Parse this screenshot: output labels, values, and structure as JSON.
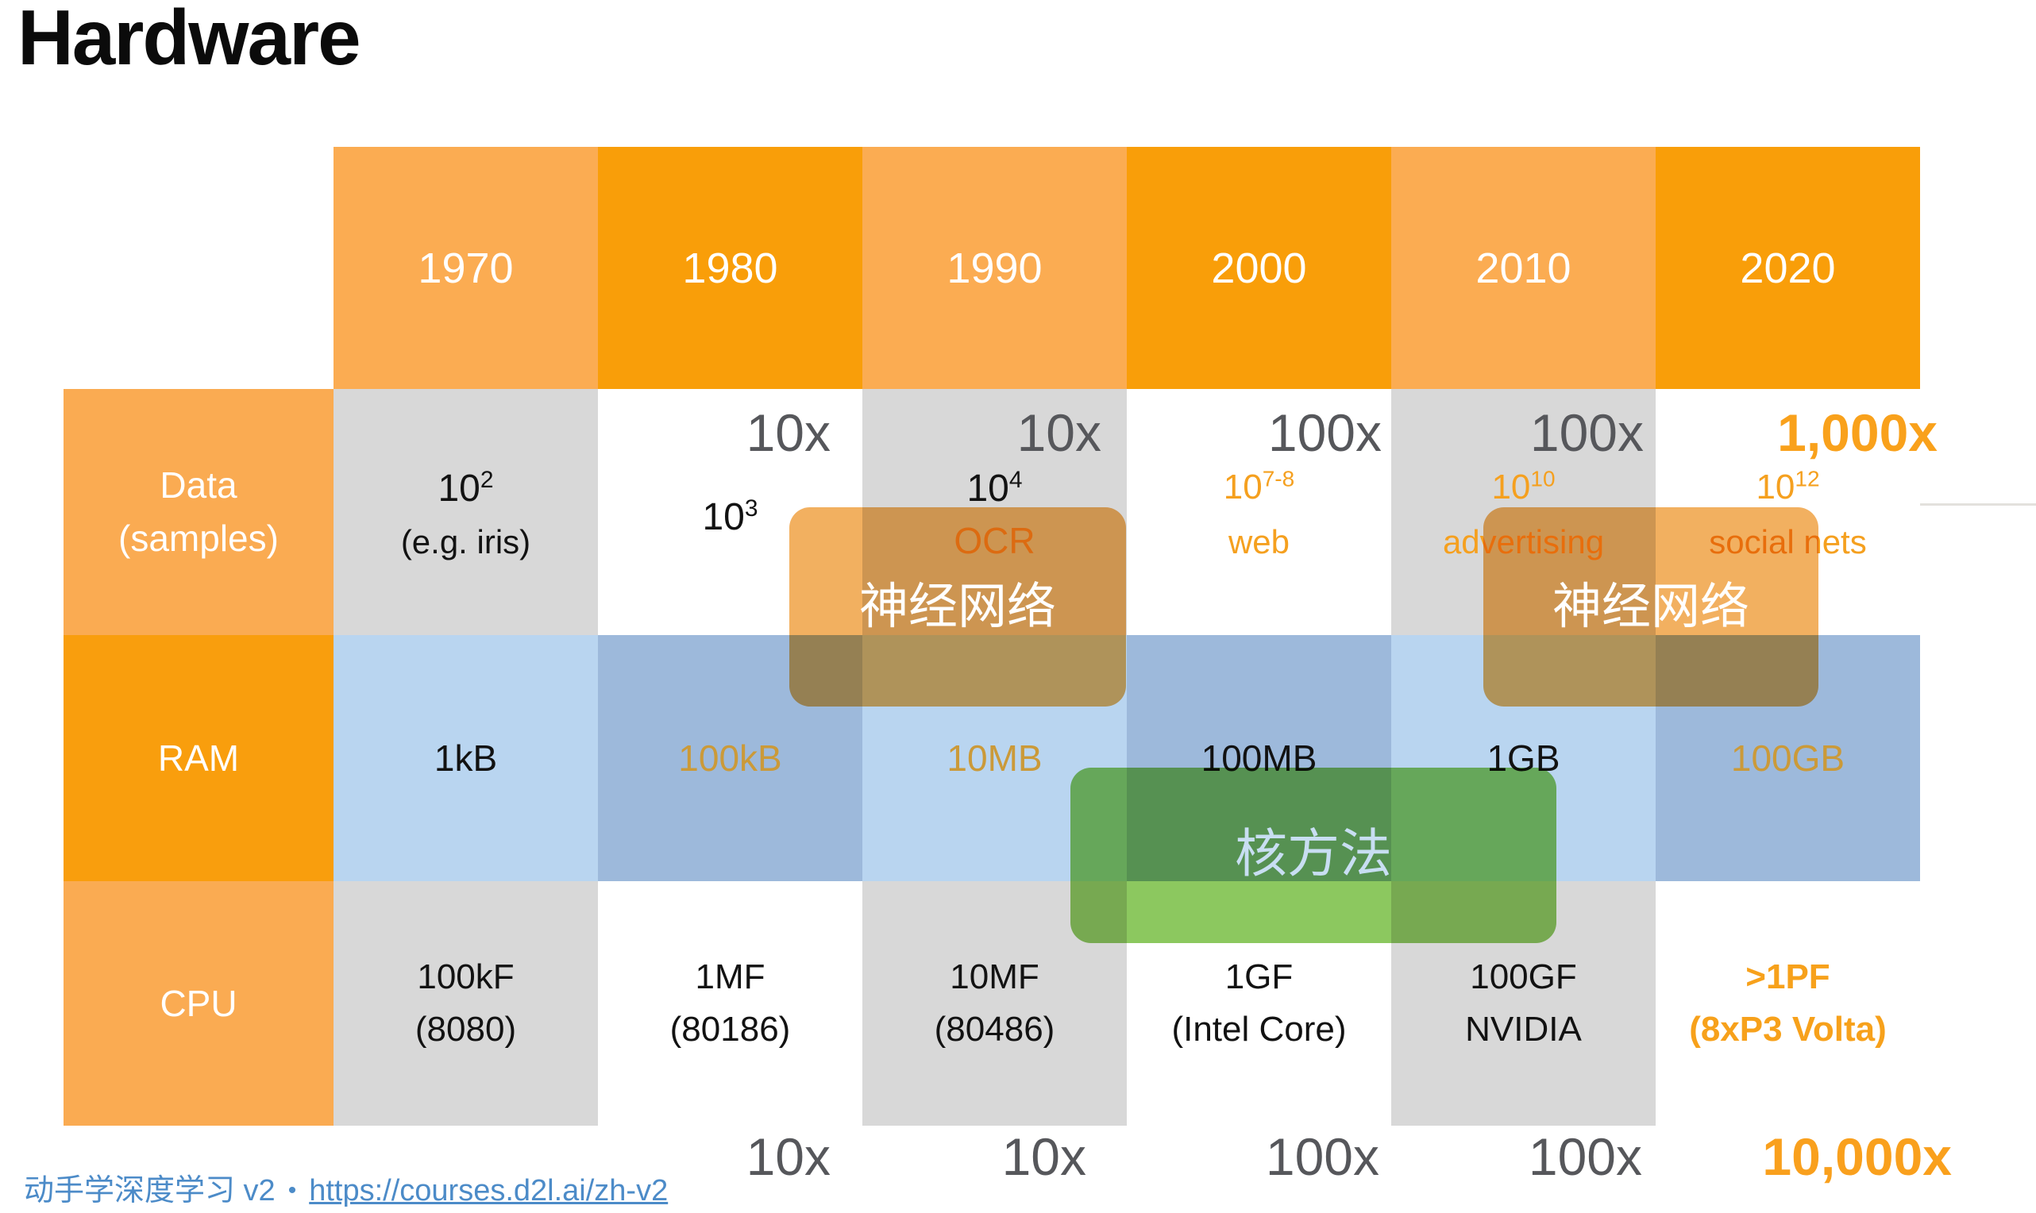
{
  "title": "Hardware",
  "header": {
    "years": [
      "1970",
      "1980",
      "1990",
      "2000",
      "2010",
      "2020"
    ]
  },
  "rows": {
    "data": {
      "label_line1": "Data",
      "label_line2": "(samples)",
      "multipliers": [
        "10x",
        "10x",
        "100x",
        "100x",
        "1,000x"
      ],
      "cells": [
        {
          "base": "10",
          "sup": "2",
          "note": "(e.g. iris)"
        },
        {
          "base": "10",
          "sup": "3",
          "note": ""
        },
        {
          "base": "10",
          "sup": "4",
          "note": "OCR"
        },
        {
          "base": "10",
          "sup": "7-8",
          "note": "web"
        },
        {
          "base": "10",
          "sup": "10",
          "note": "advertising"
        },
        {
          "base": "10",
          "sup": "12",
          "note": "social nets"
        }
      ]
    },
    "ram": {
      "label": "RAM",
      "cells": [
        "1kB",
        "100kB",
        "10MB",
        "100MB",
        "1GB",
        "100GB"
      ]
    },
    "cpu": {
      "label": "CPU",
      "cells": [
        {
          "line1": "100kF",
          "line2": "(8080)"
        },
        {
          "line1": "1MF",
          "line2": "(80186)"
        },
        {
          "line1": "10MF",
          "line2": "(80486)"
        },
        {
          "line1": "1GF",
          "line2": "(Intel Core)"
        },
        {
          "line1": "100GF",
          "line2": "NVIDIA"
        },
        {
          "line1": ">1PF",
          "line2": "(8xP3 Volta)"
        }
      ]
    },
    "bottom_multipliers": [
      "10x",
      "10x",
      "100x",
      "100x",
      "10,000x"
    ]
  },
  "overlays": {
    "neural_net_1": "神经网络",
    "neural_net_2": "神经网络",
    "kernel_method": "核方法"
  },
  "footer": {
    "label": "动手学深度学习 v2",
    "separator": "•",
    "link": "https://courses.d2l.ai/zh-v2"
  },
  "colors": {
    "header_orange_light": "#FBAC52",
    "header_orange_dark": "#F99E09",
    "cell_gray": "#D8D8D8",
    "ram_blue_light": "#B9D5F0",
    "ram_blue_dark": "#9DB9DB",
    "multiplier_gray": "#56575B",
    "accent_orange": "#F9A11B",
    "gold_value": "#CB9A39",
    "overlay_orange": "#F2B060",
    "overlay_green": "#8CC85F",
    "kernel_text": "#C8DEF2",
    "footer_blue": "#4C8BC8"
  }
}
